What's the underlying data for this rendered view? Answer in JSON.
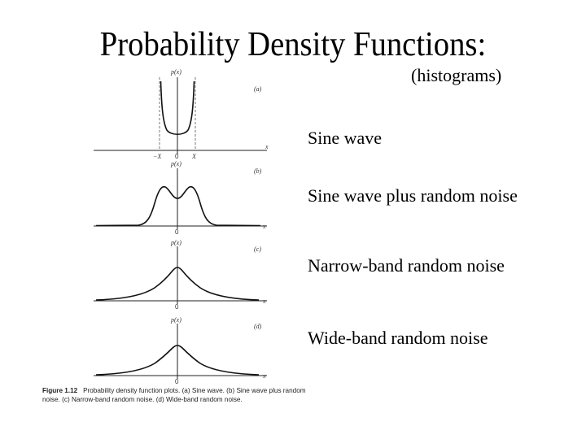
{
  "slide": {
    "title": "Probability Density Functions:",
    "subtitle": "(histograms)",
    "labels": [
      "Sine wave",
      "Sine wave plus random noise",
      "Narrow-band random noise",
      "Wide-band random noise"
    ]
  },
  "figure": {
    "panels": [
      {
        "letter": "(a)",
        "ylabel": "p(x)",
        "xlabel": "x",
        "ticks": [
          "−X",
          "0",
          "X"
        ]
      },
      {
        "letter": "(b)",
        "ylabel": "p(x)",
        "xlabel": "x",
        "ticks": [
          "0"
        ]
      },
      {
        "letter": "(c)",
        "ylabel": "p(x)",
        "xlabel": "x",
        "ticks": [
          "0"
        ]
      },
      {
        "letter": "(d)",
        "ylabel": "p(x)",
        "xlabel": "x",
        "ticks": [
          "0"
        ]
      }
    ],
    "caption_number": "Figure 1.12",
    "caption_text": "Probability density function plots. (a) Sine wave. (b) Sine wave plus random noise. (c) Narrow-band random noise. (d) Wide-band random noise."
  }
}
